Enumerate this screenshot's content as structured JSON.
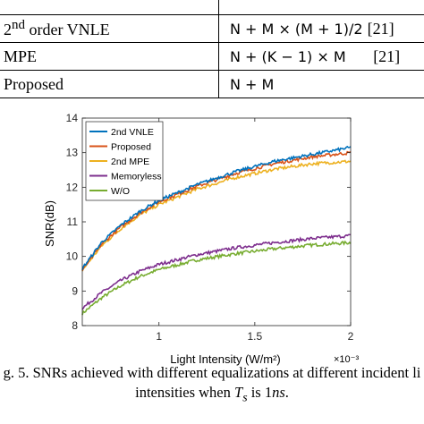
{
  "table": {
    "top_cut_text": "",
    "rows": [
      {
        "method_prefix": "2",
        "method_sup": "nd",
        "method_suffix": " order VNLE",
        "complexity": "N + M × (M + 1)/2",
        "ref": "[21]"
      },
      {
        "method_prefix": "MPE",
        "method_sup": "",
        "method_suffix": "",
        "complexity": "N + (K − 1) × M",
        "ref": "[21]"
      },
      {
        "method_prefix": "Proposed",
        "method_sup": "",
        "method_suffix": "",
        "complexity": "N + M",
        "ref": ""
      }
    ]
  },
  "chart_data": {
    "type": "line",
    "xlabel": "Light Intensity (W/m²)",
    "ylabel": "SNR(dB)",
    "x_exponent_label": "×10⁻³",
    "xlim": [
      0.6,
      2.0
    ],
    "ylim": [
      8,
      14
    ],
    "xticks": [
      1,
      1.5,
      2
    ],
    "yticks": [
      8,
      9,
      10,
      11,
      12,
      13,
      14
    ],
    "grid": false,
    "legend_position": "top-left",
    "series": [
      {
        "name": "2nd VNLE",
        "color": "#0072BD",
        "x": [
          0.6,
          0.7,
          0.8,
          0.9,
          1.0,
          1.2,
          1.4,
          1.6,
          1.8,
          2.0
        ],
        "y": [
          9.65,
          10.4,
          10.9,
          11.3,
          11.62,
          12.08,
          12.45,
          12.75,
          12.95,
          13.15
        ]
      },
      {
        "name": "Proposed",
        "color": "#D95319",
        "x": [
          0.6,
          0.7,
          0.8,
          0.9,
          1.0,
          1.2,
          1.4,
          1.6,
          1.8,
          2.0
        ],
        "y": [
          9.6,
          10.35,
          10.85,
          11.25,
          11.58,
          12.03,
          12.4,
          12.68,
          12.88,
          13.0
        ]
      },
      {
        "name": "2nd MPE",
        "color": "#EDB120",
        "x": [
          0.6,
          0.7,
          0.8,
          0.9,
          1.0,
          1.2,
          1.4,
          1.6,
          1.8,
          2.0
        ],
        "y": [
          9.6,
          10.3,
          10.8,
          11.2,
          11.5,
          11.95,
          12.28,
          12.52,
          12.68,
          12.75
        ]
      },
      {
        "name": "Memoryless",
        "color": "#7E2F8E",
        "x": [
          0.6,
          0.7,
          0.8,
          0.9,
          1.0,
          1.2,
          1.4,
          1.6,
          1.8,
          2.0
        ],
        "y": [
          8.5,
          8.95,
          9.3,
          9.57,
          9.77,
          10.05,
          10.25,
          10.4,
          10.52,
          10.6
        ]
      },
      {
        "name": "W/O",
        "color": "#77AC30",
        "x": [
          0.6,
          0.7,
          0.8,
          0.9,
          1.0,
          1.2,
          1.4,
          1.6,
          1.8,
          2.0
        ],
        "y": [
          8.35,
          8.8,
          9.15,
          9.42,
          9.62,
          9.9,
          10.08,
          10.22,
          10.33,
          10.4
        ]
      }
    ]
  },
  "caption": {
    "line1": "g. 5. SNRs achieved with different equalizations at different incident li",
    "line2_pre": "intensities when ",
    "line2_var": "T",
    "line2_sub": "s",
    "line2_mid": " is 1",
    "line2_unit": "ns",
    "line2_end": "."
  }
}
